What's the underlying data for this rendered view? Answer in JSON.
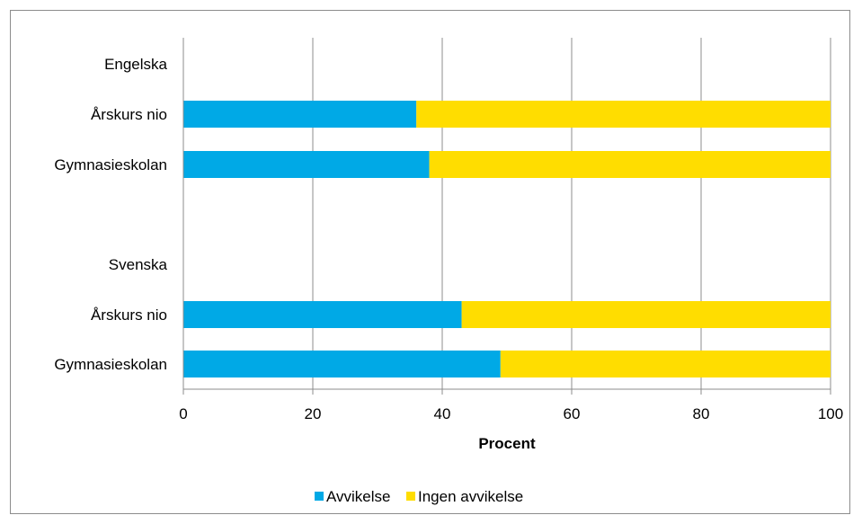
{
  "chart_data": {
    "type": "bar",
    "orientation": "horizontal",
    "stacked": true,
    "groups": [
      {
        "label": "Engelska",
        "categories": [
          "Årskurs nio",
          "Gymnasieskolan"
        ]
      },
      {
        "label": "Svenska",
        "categories": [
          "Årskurs nio",
          "Gymnasieskolan"
        ]
      }
    ],
    "series": [
      {
        "name": "Avvikelse",
        "color": "#00A9E6",
        "values": [
          36,
          38,
          43,
          49
        ]
      },
      {
        "name": "Ingen avvikelse",
        "color": "#FFDD00",
        "values": [
          64,
          62,
          57,
          51
        ]
      }
    ],
    "xlabel": "Procent",
    "xlim": [
      0,
      100
    ],
    "xticks": [
      "0",
      "20",
      "40",
      "60",
      "80",
      "100"
    ],
    "grid": true,
    "legend_position": "bottom"
  }
}
